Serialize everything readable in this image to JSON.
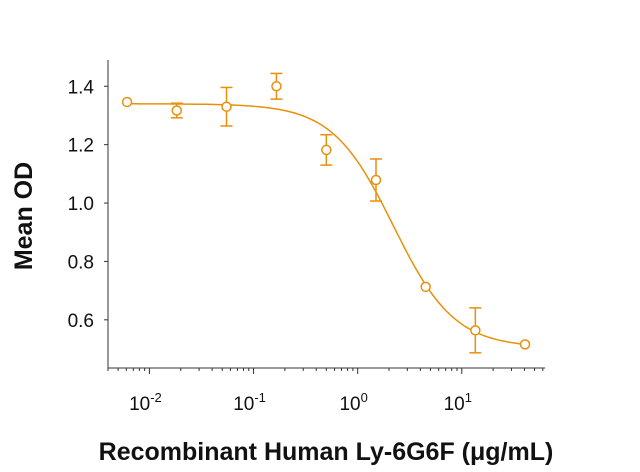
{
  "chart_data": {
    "type": "scatter",
    "title": "",
    "xlabel": "Recombinant Human Ly-6G6F (μg/mL)",
    "ylabel": "Mean OD",
    "x_scale": "log",
    "xlim": [
      0.004,
      63
    ],
    "ylim": [
      0.435,
      1.49
    ],
    "x_ticks": [
      0.01,
      0.1,
      1,
      10
    ],
    "x_tick_labels": [
      {
        "base": "10",
        "exp": "-2"
      },
      {
        "base": "10",
        "exp": "-1"
      },
      {
        "base": "10",
        "exp": "0"
      },
      {
        "base": "10",
        "exp": "1"
      }
    ],
    "y_ticks": [
      0.6,
      0.8,
      1.0,
      1.2,
      1.4
    ],
    "y_tick_labels": [
      "0.6",
      "0.8",
      "1.0",
      "1.2",
      "1.4"
    ],
    "grid": false,
    "color": "#E8900A",
    "points": [
      {
        "x": 0.0061,
        "y": 1.346,
        "err": 0
      },
      {
        "x": 0.0183,
        "y": 1.317,
        "err": 0.025
      },
      {
        "x": 0.055,
        "y": 1.33,
        "err": 0.066
      },
      {
        "x": 0.166,
        "y": 1.4,
        "err": 0.044
      },
      {
        "x": 0.5,
        "y": 1.182,
        "err": 0.052
      },
      {
        "x": 1.5,
        "y": 1.079,
        "err": 0.072
      },
      {
        "x": 4.5,
        "y": 0.713,
        "err": 0
      },
      {
        "x": 13.5,
        "y": 0.564,
        "err": 0.077
      },
      {
        "x": 40.5,
        "y": 0.516,
        "err": 0
      }
    ],
    "fit_curve": {
      "model": "4PL",
      "top": 1.34,
      "bottom": 0.505,
      "ec50": 2.2,
      "hill": 1.48
    }
  }
}
